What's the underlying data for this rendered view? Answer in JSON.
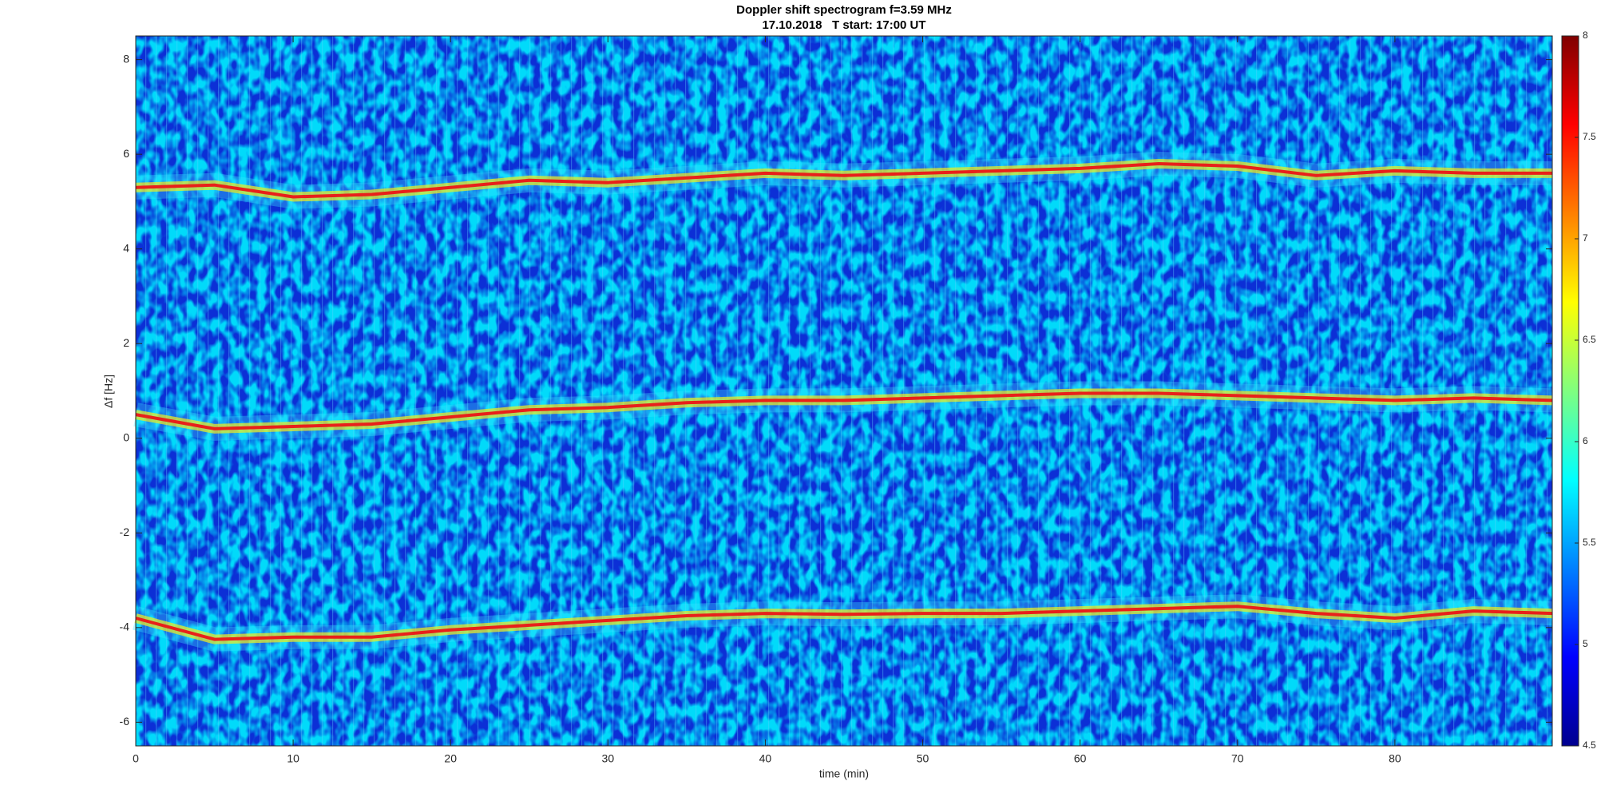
{
  "chart_data": {
    "type": "line",
    "title": "Doppler shift spectrogram f=3.59 MHz",
    "subtitle": "17.10.2018   T start: 17:00 UT",
    "x_label": "time (min)",
    "y_label": "Δf [Hz]",
    "colormap": "jet",
    "xlim": [
      0,
      90
    ],
    "xticks": [
      0,
      10,
      20,
      30,
      40,
      50,
      60,
      70,
      80
    ],
    "ylim": [
      -6.5,
      8.5
    ],
    "yticks": [
      -6,
      -4,
      -2,
      0,
      2,
      4,
      6,
      8
    ],
    "clim": [
      4.5,
      8
    ],
    "cticks": [
      4.5,
      5,
      5.5,
      6,
      6.5,
      7,
      7.5,
      8
    ],
    "x": [
      0,
      5,
      10,
      15,
      20,
      25,
      30,
      35,
      40,
      45,
      50,
      55,
      60,
      65,
      70,
      75,
      80,
      85,
      90
    ],
    "series": [
      {
        "color": "#e8201a",
        "values": [
          5.3,
          5.35,
          5.1,
          5.15,
          5.3,
          5.45,
          5.4,
          5.5,
          5.6,
          5.55,
          5.6,
          5.65,
          5.7,
          5.8,
          5.75,
          5.55,
          5.65,
          5.6,
          5.6
        ]
      },
      {
        "color": "#e8201a",
        "values": [
          0.5,
          0.2,
          0.25,
          0.3,
          0.45,
          0.6,
          0.65,
          0.75,
          0.8,
          0.8,
          0.85,
          0.9,
          0.95,
          0.95,
          0.9,
          0.85,
          0.8,
          0.85,
          0.8
        ]
      },
      {
        "color": "#e8201a",
        "values": [
          -3.8,
          -4.25,
          -4.2,
          -4.2,
          -4.05,
          -3.95,
          -3.85,
          -3.75,
          -3.7,
          -3.72,
          -3.7,
          -3.7,
          -3.65,
          -3.6,
          -3.55,
          -3.7,
          -3.8,
          -3.65,
          -3.7
        ]
      }
    ]
  }
}
